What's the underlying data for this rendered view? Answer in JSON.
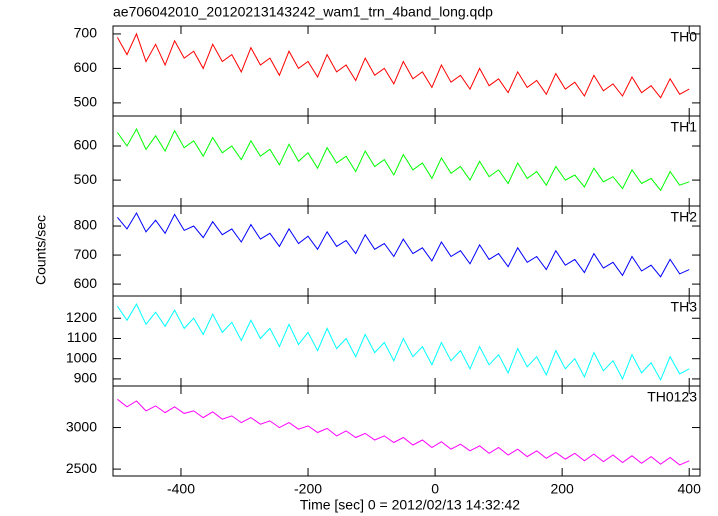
{
  "chart_data": {
    "type": "line",
    "title": "ae706042010_20120213143242_wam1_trn_4band_long.qdp",
    "xlabel": "Time [sec] 0 = 2012/02/13 14:32:42",
    "ylabel": "Counts/sec",
    "xlim": [
      -507,
      417
    ],
    "xticks": [
      -400,
      -200,
      0,
      200,
      400
    ],
    "x": [
      -500,
      -485,
      -470,
      -455,
      -440,
      -425,
      -410,
      -395,
      -380,
      -365,
      -350,
      -335,
      -320,
      -305,
      -290,
      -275,
      -260,
      -245,
      -230,
      -215,
      -200,
      -185,
      -170,
      -155,
      -140,
      -125,
      -110,
      -95,
      -80,
      -65,
      -50,
      -35,
      -20,
      -5,
      10,
      25,
      40,
      55,
      70,
      85,
      100,
      115,
      130,
      145,
      160,
      175,
      190,
      205,
      220,
      235,
      250,
      265,
      280,
      295,
      310,
      325,
      340,
      355,
      370,
      385,
      400
    ],
    "panels": [
      {
        "ylim": [
          462,
          723
        ],
        "yticks": [
          500,
          600,
          700
        ],
        "series": [
          {
            "name": "TH0",
            "color": "#ff0000",
            "values": [
              690,
              640,
              700,
              620,
              670,
              610,
              680,
              630,
              650,
              600,
              670,
              620,
              640,
              590,
              660,
              610,
              630,
              580,
              650,
              600,
              620,
              575,
              640,
              590,
              610,
              565,
              630,
              580,
              600,
              555,
              620,
              570,
              590,
              545,
              610,
              560,
              580,
              540,
              600,
              550,
              570,
              530,
              590,
              545,
              565,
              525,
              585,
              540,
              560,
              520,
              580,
              535,
              555,
              520,
              575,
              530,
              550,
              515,
              570,
              525,
              540
            ]
          }
        ]
      },
      {
        "ylim": [
          424,
          688
        ],
        "yticks": [
          500,
          600
        ],
        "series": [
          {
            "name": "TH1",
            "color": "#00ff00",
            "values": [
              640,
              600,
              650,
              590,
              630,
              585,
              645,
              595,
              615,
              570,
              625,
              580,
              600,
              560,
              615,
              570,
              590,
              545,
              605,
              555,
              580,
              535,
              595,
              550,
              570,
              525,
              585,
              540,
              560,
              515,
              575,
              530,
              550,
              505,
              565,
              520,
              540,
              500,
              555,
              510,
              530,
              490,
              550,
              505,
              525,
              485,
              540,
              500,
              515,
              480,
              535,
              495,
              510,
              475,
              530,
              490,
              505,
              470,
              525,
              485,
              495
            ]
          }
        ]
      },
      {
        "ylim": [
          559,
          869
        ],
        "yticks": [
          600,
          700,
          800
        ],
        "series": [
          {
            "name": "TH2",
            "color": "#0000ff",
            "values": [
              830,
              790,
              845,
              780,
              820,
              775,
              840,
              785,
              800,
              760,
              815,
              770,
              790,
              745,
              805,
              755,
              775,
              730,
              790,
              740,
              765,
              720,
              780,
              730,
              750,
              705,
              770,
              720,
              740,
              695,
              755,
              705,
              725,
              680,
              745,
              695,
              715,
              670,
              735,
              685,
              705,
              660,
              725,
              675,
              695,
              650,
              715,
              665,
              685,
              640,
              705,
              655,
              675,
              630,
              695,
              645,
              665,
              625,
              685,
              635,
              650
            ]
          }
        ]
      },
      {
        "ylim": [
          865,
          1310
        ],
        "yticks": [
          900,
          1000,
          1100,
          1200
        ],
        "series": [
          {
            "name": "TH3",
            "color": "#00ffff",
            "values": [
              1260,
              1190,
              1270,
              1170,
              1230,
              1160,
              1240,
              1150,
              1200,
              1120,
              1220,
              1130,
              1180,
              1090,
              1190,
              1100,
              1150,
              1060,
              1170,
              1070,
              1130,
              1040,
              1150,
              1050,
              1100,
              1010,
              1120,
              1030,
              1080,
              990,
              1100,
              1010,
              1060,
              970,
              1080,
              990,
              1040,
              950,
              1060,
              970,
              1020,
              930,
              1050,
              960,
              1010,
              920,
              1040,
              950,
              1000,
              910,
              1030,
              940,
              990,
              900,
              1020,
              930,
              980,
              895,
              1010,
              925,
              950
            ]
          }
        ]
      },
      {
        "ylim": [
          2417,
          3500
        ],
        "yticks": [
          2500,
          3000
        ],
        "series": [
          {
            "name": "TH0123",
            "color": "#ff00ff",
            "values": [
              3340,
              3250,
              3320,
              3200,
              3260,
              3180,
              3250,
              3170,
              3200,
              3120,
              3190,
              3100,
              3140,
              3060,
              3120,
              3040,
              3080,
              3000,
              3060,
              2980,
              3020,
              2940,
              2990,
              2900,
              2960,
              2880,
              2930,
              2850,
              2900,
              2820,
              2880,
              2790,
              2850,
              2760,
              2830,
              2740,
              2800,
              2720,
              2780,
              2690,
              2760,
              2670,
              2740,
              2650,
              2720,
              2630,
              2700,
              2620,
              2690,
              2600,
              2680,
              2590,
              2670,
              2580,
              2660,
              2570,
              2650,
              2560,
              2640,
              2550,
              2600
            ]
          }
        ]
      }
    ]
  }
}
